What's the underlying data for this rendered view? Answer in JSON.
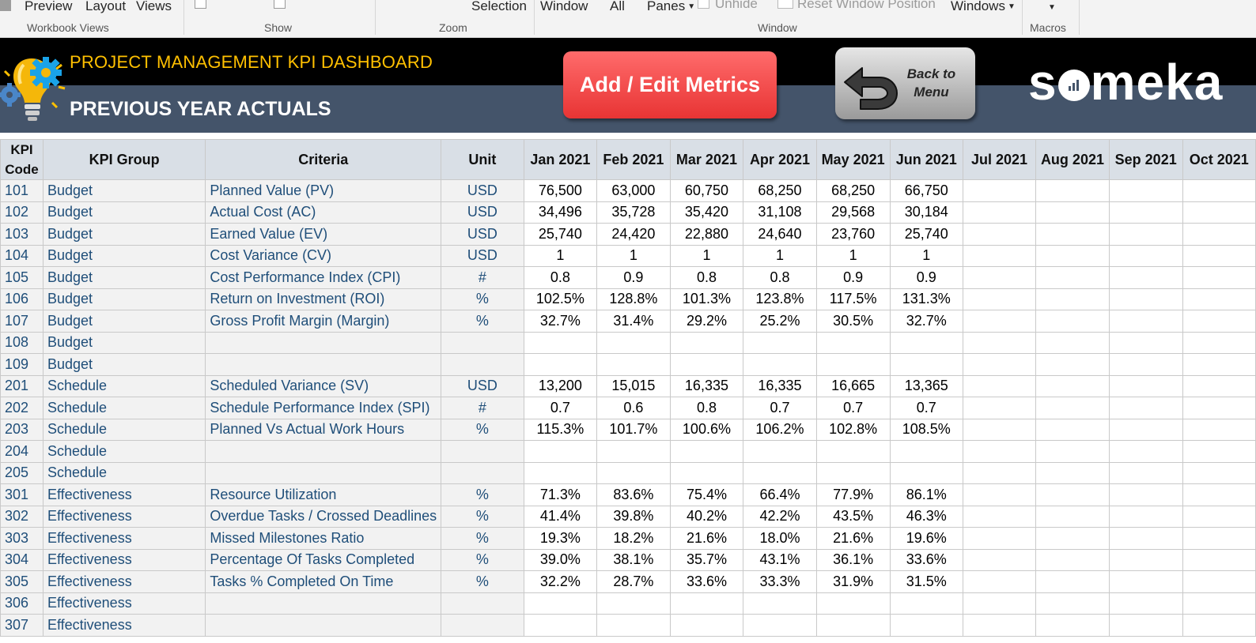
{
  "ribbon": {
    "items": [
      "Preview",
      "Layout",
      "Views",
      "Selection",
      "Window",
      "All",
      "Panes",
      "Unhide",
      "Reset Window Position",
      "Windows"
    ],
    "groups": [
      "Workbook Views",
      "Show",
      "Zoom",
      "Window",
      "Macros"
    ]
  },
  "banner": {
    "title": "PROJECT MANAGEMENT KPI DASHBOARD",
    "subtitle": "PREVIOUS YEAR ACTUALS",
    "add_button": "Add / Edit Metrics",
    "back_button_line1": "Back to",
    "back_button_line2": "Menu",
    "brand": "someka",
    "colors": {
      "title": "#ffc000",
      "band_top": "#000000",
      "band_bottom": "#44546a",
      "add_button": "#f04545"
    }
  },
  "grid": {
    "headers": {
      "code_line1": "KPI",
      "code_line2": "Code",
      "group": "KPI Group",
      "criteria": "Criteria",
      "unit": "Unit",
      "months": [
        "Jan 2021",
        "Feb 2021",
        "Mar 2021",
        "Apr 2021",
        "May 2021",
        "Jun 2021",
        "Jul 2021",
        "Aug 2021",
        "Sep 2021",
        "Oct 2021"
      ]
    },
    "rows": [
      {
        "code": "101",
        "group": "Budget",
        "criteria": "Planned Value (PV)",
        "unit": "USD",
        "values": [
          "76,500",
          "63,000",
          "60,750",
          "68,250",
          "68,250",
          "66,750",
          "",
          "",
          "",
          ""
        ]
      },
      {
        "code": "102",
        "group": "Budget",
        "criteria": "Actual Cost (AC)",
        "unit": "USD",
        "values": [
          "34,496",
          "35,728",
          "35,420",
          "31,108",
          "29,568",
          "30,184",
          "",
          "",
          "",
          ""
        ]
      },
      {
        "code": "103",
        "group": "Budget",
        "criteria": "Earned Value (EV)",
        "unit": "USD",
        "values": [
          "25,740",
          "24,420",
          "22,880",
          "24,640",
          "23,760",
          "25,740",
          "",
          "",
          "",
          ""
        ]
      },
      {
        "code": "104",
        "group": "Budget",
        "criteria": "Cost Variance (CV)",
        "unit": "USD",
        "values": [
          "1",
          "1",
          "1",
          "1",
          "1",
          "1",
          "",
          "",
          "",
          ""
        ]
      },
      {
        "code": "105",
        "group": "Budget",
        "criteria": "Cost Performance Index (CPI)",
        "unit": "#",
        "values": [
          "0.8",
          "0.9",
          "0.8",
          "0.8",
          "0.9",
          "0.9",
          "",
          "",
          "",
          ""
        ]
      },
      {
        "code": "106",
        "group": "Budget",
        "criteria": "Return on Investment (ROI)",
        "unit": "%",
        "values": [
          "102.5%",
          "128.8%",
          "101.3%",
          "123.8%",
          "117.5%",
          "131.3%",
          "",
          "",
          "",
          ""
        ]
      },
      {
        "code": "107",
        "group": "Budget",
        "criteria": "Gross Profit Margin (Margin)",
        "unit": "%",
        "values": [
          "32.7%",
          "31.4%",
          "29.2%",
          "25.2%",
          "30.5%",
          "32.7%",
          "",
          "",
          "",
          ""
        ]
      },
      {
        "code": "108",
        "group": "Budget",
        "criteria": "",
        "unit": "",
        "values": [
          "",
          "",
          "",
          "",
          "",
          "",
          "",
          "",
          "",
          ""
        ]
      },
      {
        "code": "109",
        "group": "Budget",
        "criteria": "",
        "unit": "",
        "values": [
          "",
          "",
          "",
          "",
          "",
          "",
          "",
          "",
          "",
          ""
        ]
      },
      {
        "code": "201",
        "group": "Schedule",
        "criteria": "Scheduled Variance (SV)",
        "unit": "USD",
        "values": [
          "13,200",
          "15,015",
          "16,335",
          "16,335",
          "16,665",
          "13,365",
          "",
          "",
          "",
          ""
        ]
      },
      {
        "code": "202",
        "group": "Schedule",
        "criteria": "Schedule Performance Index (SPI)",
        "unit": "#",
        "small": true,
        "values": [
          "0.7",
          "0.6",
          "0.8",
          "0.7",
          "0.7",
          "0.7",
          "",
          "",
          "",
          ""
        ]
      },
      {
        "code": "203",
        "group": "Schedule",
        "criteria": "Planned Vs Actual Work Hours",
        "unit": "%",
        "values": [
          "115.3%",
          "101.7%",
          "100.6%",
          "106.2%",
          "102.8%",
          "108.5%",
          "",
          "",
          "",
          ""
        ]
      },
      {
        "code": "204",
        "group": "Schedule",
        "criteria": "",
        "unit": "",
        "values": [
          "",
          "",
          "",
          "",
          "",
          "",
          "",
          "",
          "",
          ""
        ]
      },
      {
        "code": "205",
        "group": "Schedule",
        "criteria": "",
        "unit": "",
        "values": [
          "",
          "",
          "",
          "",
          "",
          "",
          "",
          "",
          "",
          ""
        ]
      },
      {
        "code": "301",
        "group": "Effectiveness",
        "criteria": "Resource Utilization",
        "unit": "%",
        "values": [
          "71.3%",
          "83.6%",
          "75.4%",
          "66.4%",
          "77.9%",
          "86.1%",
          "",
          "",
          "",
          ""
        ]
      },
      {
        "code": "302",
        "group": "Effectiveness",
        "criteria": "Overdue Tasks / Crossed Deadlines",
        "unit": "%",
        "small": true,
        "values": [
          "41.4%",
          "39.8%",
          "40.2%",
          "42.2%",
          "43.5%",
          "46.3%",
          "",
          "",
          "",
          ""
        ]
      },
      {
        "code": "303",
        "group": "Effectiveness",
        "criteria": "Missed Milestones Ratio",
        "unit": "%",
        "values": [
          "19.3%",
          "18.2%",
          "21.6%",
          "18.0%",
          "21.6%",
          "19.6%",
          "",
          "",
          "",
          ""
        ]
      },
      {
        "code": "304",
        "group": "Effectiveness",
        "criteria": "Percentage Of Tasks Completed",
        "unit": "%",
        "values": [
          "39.0%",
          "38.1%",
          "35.7%",
          "43.1%",
          "36.1%",
          "33.6%",
          "",
          "",
          "",
          ""
        ]
      },
      {
        "code": "305",
        "group": "Effectiveness",
        "criteria": "Tasks % Completed On Time",
        "unit": "%",
        "values": [
          "32.2%",
          "28.7%",
          "33.6%",
          "33.3%",
          "31.9%",
          "31.5%",
          "",
          "",
          "",
          ""
        ]
      },
      {
        "code": "306",
        "group": "Effectiveness",
        "criteria": "",
        "unit": "",
        "values": [
          "",
          "",
          "",
          "",
          "",
          "",
          "",
          "",
          "",
          ""
        ]
      },
      {
        "code": "307",
        "group": "Effectiveness",
        "criteria": "",
        "unit": "",
        "values": [
          "",
          "",
          "",
          "",
          "",
          "",
          "",
          "",
          "",
          ""
        ]
      }
    ]
  }
}
